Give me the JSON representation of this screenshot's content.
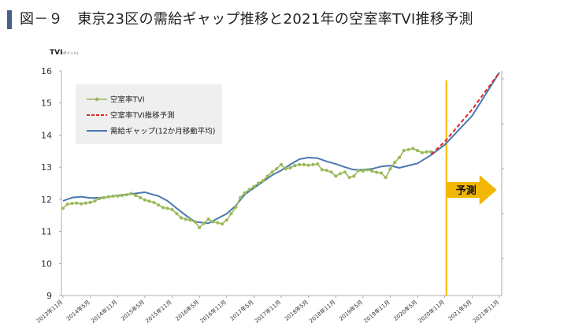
{
  "title": "図－９　東京23区の需給ギャップ推移と2021年の空室率TVI推移予測",
  "colors": {
    "tvi": "#9aba59",
    "forecast": "#e0262a",
    "gap": "#4a78b0",
    "divider": "#f2b705",
    "arrow": "#f2b705",
    "legend_bg": "#efefef",
    "title_bar": "#4a5f8a"
  },
  "chart_data": {
    "type": "line",
    "ylabel": "TVI",
    "ylabel_unit": "(ポイント)",
    "ylim": [
      9,
      16
    ],
    "yticks": [
      9,
      10,
      11,
      12,
      13,
      14,
      15,
      16
    ],
    "xticks": [
      "2013年11月",
      "2014年5月",
      "2014年11月",
      "2015年5月",
      "2015年11月",
      "2016年5月",
      "2016年11月",
      "2017年5月",
      "2017年11月",
      "2018年5月",
      "2018年11月",
      "2019年5月",
      "2019年11月",
      "2020年5月",
      "2020年11月",
      "2021年5月",
      "2021年11月"
    ],
    "forecast_label": "予測",
    "forecast_start": "2020年11月",
    "series": [
      {
        "name": "空室率TVI",
        "style": "line-markers",
        "values": [
          {
            "x": "2013-11",
            "y": 11.72
          },
          {
            "x": "2013-12",
            "y": 11.85
          },
          {
            "x": "2014-01",
            "y": 11.87
          },
          {
            "x": "2014-02",
            "y": 11.88
          },
          {
            "x": "2014-03",
            "y": 11.86
          },
          {
            "x": "2014-04",
            "y": 11.88
          },
          {
            "x": "2014-05",
            "y": 11.9
          },
          {
            "x": "2014-06",
            "y": 11.95
          },
          {
            "x": "2014-07",
            "y": 12.02
          },
          {
            "x": "2014-08",
            "y": 12.05
          },
          {
            "x": "2014-09",
            "y": 12.08
          },
          {
            "x": "2014-10",
            "y": 12.1
          },
          {
            "x": "2014-11",
            "y": 12.1
          },
          {
            "x": "2014-12",
            "y": 12.12
          },
          {
            "x": "2015-01",
            "y": 12.14
          },
          {
            "x": "2015-02",
            "y": 12.18
          },
          {
            "x": "2015-03",
            "y": 12.12
          },
          {
            "x": "2015-04",
            "y": 12.05
          },
          {
            "x": "2015-05",
            "y": 11.98
          },
          {
            "x": "2015-06",
            "y": 11.94
          },
          {
            "x": "2015-07",
            "y": 11.9
          },
          {
            "x": "2015-08",
            "y": 11.82
          },
          {
            "x": "2015-09",
            "y": 11.74
          },
          {
            "x": "2015-10",
            "y": 11.72
          },
          {
            "x": "2015-11",
            "y": 11.68
          },
          {
            "x": "2015-12",
            "y": 11.55
          },
          {
            "x": "2016-01",
            "y": 11.42
          },
          {
            "x": "2016-02",
            "y": 11.38
          },
          {
            "x": "2016-03",
            "y": 11.35
          },
          {
            "x": "2016-04",
            "y": 11.3
          },
          {
            "x": "2016-05",
            "y": 11.12
          },
          {
            "x": "2016-06",
            "y": 11.25
          },
          {
            "x": "2016-07",
            "y": 11.38
          },
          {
            "x": "2016-08",
            "y": 11.3
          },
          {
            "x": "2016-09",
            "y": 11.27
          },
          {
            "x": "2016-10",
            "y": 11.23
          },
          {
            "x": "2016-11",
            "y": 11.35
          },
          {
            "x": "2016-12",
            "y": 11.55
          },
          {
            "x": "2017-01",
            "y": 11.75
          },
          {
            "x": "2017-02",
            "y": 12.05
          },
          {
            "x": "2017-03",
            "y": 12.2
          },
          {
            "x": "2017-04",
            "y": 12.3
          },
          {
            "x": "2017-05",
            "y": 12.4
          },
          {
            "x": "2017-06",
            "y": 12.5
          },
          {
            "x": "2017-07",
            "y": 12.58
          },
          {
            "x": "2017-08",
            "y": 12.72
          },
          {
            "x": "2017-09",
            "y": 12.85
          },
          {
            "x": "2017-10",
            "y": 12.95
          },
          {
            "x": "2017-11",
            "y": 13.08
          },
          {
            "x": "2017-12",
            "y": 12.95
          },
          {
            "x": "2018-01",
            "y": 12.98
          },
          {
            "x": "2018-02",
            "y": 13.05
          },
          {
            "x": "2018-03",
            "y": 13.08
          },
          {
            "x": "2018-04",
            "y": 13.08
          },
          {
            "x": "2018-05",
            "y": 13.06
          },
          {
            "x": "2018-06",
            "y": 13.08
          },
          {
            "x": "2018-07",
            "y": 13.1
          },
          {
            "x": "2018-08",
            "y": 12.92
          },
          {
            "x": "2018-09",
            "y": 12.9
          },
          {
            "x": "2018-10",
            "y": 12.85
          },
          {
            "x": "2018-11",
            "y": 12.72
          },
          {
            "x": "2018-12",
            "y": 12.8
          },
          {
            "x": "2019-01",
            "y": 12.85
          },
          {
            "x": "2019-02",
            "y": 12.68
          },
          {
            "x": "2019-03",
            "y": 12.72
          },
          {
            "x": "2019-04",
            "y": 12.9
          },
          {
            "x": "2019-05",
            "y": 12.88
          },
          {
            "x": "2019-06",
            "y": 12.92
          },
          {
            "x": "2019-07",
            "y": 12.88
          },
          {
            "x": "2019-08",
            "y": 12.84
          },
          {
            "x": "2019-09",
            "y": 12.82
          },
          {
            "x": "2019-10",
            "y": 12.68
          },
          {
            "x": "2019-11",
            "y": 12.95
          },
          {
            "x": "2019-12",
            "y": 13.15
          },
          {
            "x": "2020-01",
            "y": 13.3
          },
          {
            "x": "2020-02",
            "y": 13.52
          },
          {
            "x": "2020-03",
            "y": 13.55
          },
          {
            "x": "2020-04",
            "y": 13.58
          },
          {
            "x": "2020-05",
            "y": 13.52
          },
          {
            "x": "2020-06",
            "y": 13.45
          },
          {
            "x": "2020-07",
            "y": 13.48
          },
          {
            "x": "2020-08",
            "y": 13.48
          }
        ]
      },
      {
        "name": "空室率TVI推移予測",
        "style": "dashed",
        "values": [
          {
            "x": "2020-08",
            "y": 13.4
          },
          {
            "x": "2020-11",
            "y": 13.8
          },
          {
            "x": "2021-05",
            "y": 14.8
          },
          {
            "x": "2021-11",
            "y": 15.95
          }
        ]
      },
      {
        "name": "需給ギャップ(12か月移動平均)",
        "style": "line",
        "values": [
          {
            "x": "2013-11",
            "y": 11.95
          },
          {
            "x": "2014-01",
            "y": 12.05
          },
          {
            "x": "2014-03",
            "y": 12.08
          },
          {
            "x": "2014-05",
            "y": 12.04
          },
          {
            "x": "2014-08",
            "y": 12.05
          },
          {
            "x": "2014-11",
            "y": 12.12
          },
          {
            "x": "2015-02",
            "y": 12.16
          },
          {
            "x": "2015-05",
            "y": 12.22
          },
          {
            "x": "2015-08",
            "y": 12.1
          },
          {
            "x": "2015-10",
            "y": 11.95
          },
          {
            "x": "2015-12",
            "y": 11.72
          },
          {
            "x": "2016-02",
            "y": 11.5
          },
          {
            "x": "2016-04",
            "y": 11.3
          },
          {
            "x": "2016-07",
            "y": 11.25
          },
          {
            "x": "2016-09",
            "y": 11.4
          },
          {
            "x": "2016-11",
            "y": 11.55
          },
          {
            "x": "2017-01",
            "y": 11.8
          },
          {
            "x": "2017-03",
            "y": 12.15
          },
          {
            "x": "2017-06",
            "y": 12.45
          },
          {
            "x": "2017-09",
            "y": 12.75
          },
          {
            "x": "2017-11",
            "y": 12.9
          },
          {
            "x": "2018-01",
            "y": 13.08
          },
          {
            "x": "2018-03",
            "y": 13.25
          },
          {
            "x": "2018-05",
            "y": 13.3
          },
          {
            "x": "2018-07",
            "y": 13.28
          },
          {
            "x": "2018-09",
            "y": 13.18
          },
          {
            "x": "2018-11",
            "y": 13.1
          },
          {
            "x": "2019-01",
            "y": 13.0
          },
          {
            "x": "2019-03",
            "y": 12.92
          },
          {
            "x": "2019-05",
            "y": 12.92
          },
          {
            "x": "2019-07",
            "y": 12.95
          },
          {
            "x": "2019-09",
            "y": 13.02
          },
          {
            "x": "2019-11",
            "y": 13.05
          },
          {
            "x": "2020-01",
            "y": 12.98
          },
          {
            "x": "2020-03",
            "y": 13.05
          },
          {
            "x": "2020-05",
            "y": 13.12
          },
          {
            "x": "2020-08",
            "y": 13.38
          },
          {
            "x": "2020-11",
            "y": 13.7
          },
          {
            "x": "2021-05",
            "y": 14.6
          },
          {
            "x": "2021-11",
            "y": 15.95
          }
        ]
      }
    ]
  }
}
